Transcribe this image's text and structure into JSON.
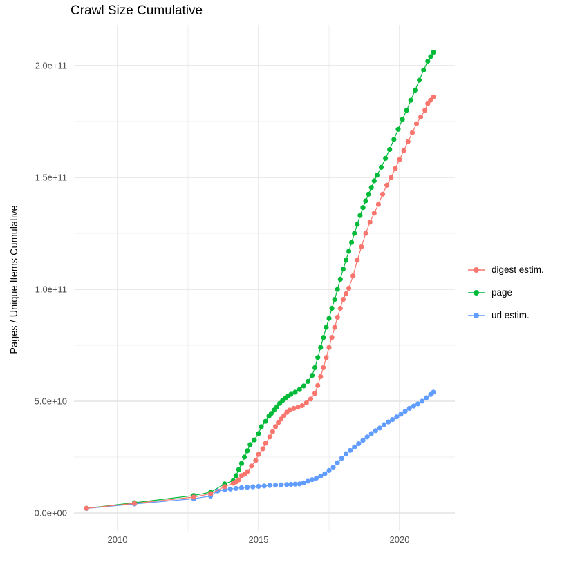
{
  "title": "Crawl Size Cumulative",
  "y_axis_title": "Pages / Unique Items Cumulative",
  "legend": {
    "position": "right",
    "items": [
      {
        "label": "digest estim.",
        "color": "#F8766D"
      },
      {
        "label": "page",
        "color": "#00BA38"
      },
      {
        "label": "url estim.",
        "color": "#619CFF"
      }
    ]
  },
  "axes": {
    "x_tick_labels": [
      "2010",
      "2015",
      "2020"
    ],
    "y_tick_labels": [
      "0.0e+00",
      "5.0e+10",
      "1.0e+11",
      "1.5e+11",
      "2.0e+11"
    ],
    "tick_label_color": "#4D4D4D"
  },
  "chart_data": {
    "type": "line",
    "title": "Crawl Size Cumulative",
    "xlabel": "",
    "ylabel": "Pages / Unique Items Cumulative",
    "xlim": [
      2008.45,
      2021.95
    ],
    "ylim": [
      0,
      215000000000.0
    ],
    "x_ticks": [
      2010,
      2015,
      2020
    ],
    "x_minor_ticks": [
      2012.5,
      2017.5
    ],
    "y_ticks": [
      0,
      50000000000.0,
      100000000000.0,
      150000000000.0,
      200000000000.0
    ],
    "y_minor_ticks": [
      25000000000.0,
      75000000000.0,
      125000000000.0,
      175000000000.0
    ],
    "grid": true,
    "legend_position": "right",
    "marker": "point",
    "series": [
      {
        "name": "digest estim.",
        "color": "#F8766D",
        "points": [
          [
            2008.9,
            2100000000.0
          ],
          [
            2010.6,
            4300000000.0
          ],
          [
            2012.7,
            7100000000.0
          ],
          [
            2013.3,
            8600000000.0
          ],
          [
            2013.8,
            11800000000.0
          ],
          [
            2014.1,
            13300000000.0
          ],
          [
            2014.2,
            13900000000.0
          ],
          [
            2014.3,
            14800000000.0
          ],
          [
            2014.4,
            16700000000.0
          ],
          [
            2014.5,
            17300000000.0
          ],
          [
            2014.6,
            18500000000.0
          ],
          [
            2014.75,
            21000000000.0
          ],
          [
            2014.9,
            23500000000.0
          ],
          [
            2015.0,
            26200000000.0
          ],
          [
            2015.15,
            28700000000.0
          ],
          [
            2015.25,
            31200000000.0
          ],
          [
            2015.4,
            34000000000.0
          ],
          [
            2015.5,
            36400000000.0
          ],
          [
            2015.6,
            38600000000.0
          ],
          [
            2015.7,
            40400000000.0
          ],
          [
            2015.8,
            42000000000.0
          ],
          [
            2015.9,
            43500000000.0
          ],
          [
            2016.0,
            45000000000.0
          ],
          [
            2016.1,
            46000000000.0
          ],
          [
            2016.25,
            46800000000.0
          ],
          [
            2016.4,
            47300000000.0
          ],
          [
            2016.55,
            48000000000.0
          ],
          [
            2016.7,
            49300000000.0
          ],
          [
            2016.85,
            51000000000.0
          ],
          [
            2017.0,
            53500000000.0
          ],
          [
            2017.1,
            57000000000.0
          ],
          [
            2017.2,
            61000000000.0
          ],
          [
            2017.3,
            65000000000.0
          ],
          [
            2017.4,
            69500000000.0
          ],
          [
            2017.5,
            74000000000.0
          ],
          [
            2017.6,
            78500000000.0
          ],
          [
            2017.7,
            83000000000.0
          ],
          [
            2017.8,
            87500000000.0
          ],
          [
            2017.9,
            91500000000.0
          ],
          [
            2018.0,
            95500000000.0
          ],
          [
            2018.1,
            98000000000.0
          ],
          [
            2018.2,
            100500000000.0
          ],
          [
            2018.35,
            106000000000.0
          ],
          [
            2018.5,
            113000000000.0
          ],
          [
            2018.65,
            119000000000.0
          ],
          [
            2018.8,
            125000000000.0
          ],
          [
            2018.95,
            130000000000.0
          ],
          [
            2019.1,
            134000000000.0
          ],
          [
            2019.25,
            138000000000.0
          ],
          [
            2019.4,
            142500000000.0
          ],
          [
            2019.55,
            146500000000.0
          ],
          [
            2019.7,
            150000000000.0
          ],
          [
            2019.85,
            154000000000.0
          ],
          [
            2020.0,
            158000000000.0
          ],
          [
            2020.15,
            162000000000.0
          ],
          [
            2020.3,
            166000000000.0
          ],
          [
            2020.45,
            170000000000.0
          ],
          [
            2020.6,
            174000000000.0
          ],
          [
            2020.75,
            177000000000.0
          ],
          [
            2020.9,
            180000000000.0
          ],
          [
            2021.0,
            183000000000.0
          ],
          [
            2021.1,
            184500000000.0
          ],
          [
            2021.2,
            186000000000.0
          ]
        ]
      },
      {
        "name": "page",
        "color": "#00BA38",
        "points": [
          [
            2008.9,
            2100000000.0
          ],
          [
            2010.6,
            4600000000.0
          ],
          [
            2012.7,
            7800000000.0
          ],
          [
            2013.3,
            9300000000.0
          ],
          [
            2013.8,
            13000000000.0
          ],
          [
            2014.1,
            14500000000.0
          ],
          [
            2014.2,
            16700000000.0
          ],
          [
            2014.3,
            19400000000.0
          ],
          [
            2014.4,
            22200000000.0
          ],
          [
            2014.5,
            25000000000.0
          ],
          [
            2014.6,
            27800000000.0
          ],
          [
            2014.7,
            30600000000.0
          ],
          [
            2014.85,
            32700000000.0
          ],
          [
            2015.0,
            35500000000.0
          ],
          [
            2015.1,
            38600000000.0
          ],
          [
            2015.25,
            41000000000.0
          ],
          [
            2015.37,
            43300000000.0
          ],
          [
            2015.45,
            44500000000.0
          ],
          [
            2015.55,
            46000000000.0
          ],
          [
            2015.65,
            47500000000.0
          ],
          [
            2015.75,
            49000000000.0
          ],
          [
            2015.85,
            50300000000.0
          ],
          [
            2015.95,
            51300000000.0
          ],
          [
            2016.05,
            52300000000.0
          ],
          [
            2016.15,
            53100000000.0
          ],
          [
            2016.3,
            54000000000.0
          ],
          [
            2016.45,
            55200000000.0
          ],
          [
            2016.6,
            56800000000.0
          ],
          [
            2016.75,
            58800000000.0
          ],
          [
            2016.9,
            61500000000.0
          ],
          [
            2017.0,
            65000000000.0
          ],
          [
            2017.1,
            69500000000.0
          ],
          [
            2017.2,
            74000000000.0
          ],
          [
            2017.3,
            78500000000.0
          ],
          [
            2017.4,
            83000000000.0
          ],
          [
            2017.5,
            87000000000.0
          ],
          [
            2017.6,
            91500000000.0
          ],
          [
            2017.7,
            95500000000.0
          ],
          [
            2017.8,
            100000000000.0
          ],
          [
            2017.9,
            104500000000.0
          ],
          [
            2018.0,
            109000000000.0
          ],
          [
            2018.1,
            113000000000.0
          ],
          [
            2018.2,
            117000000000.0
          ],
          [
            2018.3,
            121000000000.0
          ],
          [
            2018.4,
            125000000000.0
          ],
          [
            2018.5,
            129000000000.0
          ],
          [
            2018.6,
            133000000000.0
          ],
          [
            2018.7,
            136500000000.0
          ],
          [
            2018.8,
            139500000000.0
          ],
          [
            2018.9,
            142500000000.0
          ],
          [
            2019.0,
            145500000000.0
          ],
          [
            2019.1,
            148500000000.0
          ],
          [
            2019.2,
            151000000000.0
          ],
          [
            2019.35,
            154500000000.0
          ],
          [
            2019.5,
            158500000000.0
          ],
          [
            2019.65,
            162500000000.0
          ],
          [
            2019.8,
            167000000000.0
          ],
          [
            2019.95,
            171500000000.0
          ],
          [
            2020.1,
            176000000000.0
          ],
          [
            2020.25,
            180000000000.0
          ],
          [
            2020.4,
            184500000000.0
          ],
          [
            2020.55,
            189000000000.0
          ],
          [
            2020.7,
            193500000000.0
          ],
          [
            2020.85,
            198000000000.0
          ],
          [
            2021.0,
            202000000000.0
          ],
          [
            2021.1,
            204000000000.0
          ],
          [
            2021.2,
            206000000000.0
          ]
        ]
      },
      {
        "name": "url estim.",
        "color": "#619CFF",
        "points": [
          [
            2008.9,
            2000000000.0
          ],
          [
            2010.6,
            4000000000.0
          ],
          [
            2012.7,
            6400000000.0
          ],
          [
            2013.3,
            7600000000.0
          ],
          [
            2013.55,
            9800000000.0
          ],
          [
            2013.8,
            10300000000.0
          ],
          [
            2014.0,
            10700000000.0
          ],
          [
            2014.2,
            11000000000.0
          ],
          [
            2014.4,
            11300000000.0
          ],
          [
            2014.6,
            11500000000.0
          ],
          [
            2014.8,
            11700000000.0
          ],
          [
            2015.0,
            11900000000.0
          ],
          [
            2015.2,
            12100000000.0
          ],
          [
            2015.4,
            12300000000.0
          ],
          [
            2015.6,
            12500000000.0
          ],
          [
            2015.8,
            12600000000.0
          ],
          [
            2016.0,
            12700000000.0
          ],
          [
            2016.15,
            12800000000.0
          ],
          [
            2016.3,
            12900000000.0
          ],
          [
            2016.45,
            13000000000.0
          ],
          [
            2016.6,
            13500000000.0
          ],
          [
            2016.75,
            14200000000.0
          ],
          [
            2016.9,
            14900000000.0
          ],
          [
            2017.05,
            15600000000.0
          ],
          [
            2017.2,
            16500000000.0
          ],
          [
            2017.35,
            17500000000.0
          ],
          [
            2017.5,
            19000000000.0
          ],
          [
            2017.65,
            20500000000.0
          ],
          [
            2017.8,
            22500000000.0
          ],
          [
            2017.95,
            24500000000.0
          ],
          [
            2018.1,
            26500000000.0
          ],
          [
            2018.25,
            28000000000.0
          ],
          [
            2018.4,
            29500000000.0
          ],
          [
            2018.55,
            31000000000.0
          ],
          [
            2018.7,
            32500000000.0
          ],
          [
            2018.85,
            34000000000.0
          ],
          [
            2019.0,
            35500000000.0
          ],
          [
            2019.15,
            36800000000.0
          ],
          [
            2019.3,
            38000000000.0
          ],
          [
            2019.45,
            39500000000.0
          ],
          [
            2019.6,
            40700000000.0
          ],
          [
            2019.75,
            41800000000.0
          ],
          [
            2019.9,
            43000000000.0
          ],
          [
            2020.05,
            44200000000.0
          ],
          [
            2020.2,
            45500000000.0
          ],
          [
            2020.35,
            46800000000.0
          ],
          [
            2020.5,
            47800000000.0
          ],
          [
            2020.65,
            48800000000.0
          ],
          [
            2020.8,
            50000000000.0
          ],
          [
            2020.95,
            51500000000.0
          ],
          [
            2021.1,
            53000000000.0
          ],
          [
            2021.2,
            54000000000.0
          ]
        ]
      }
    ]
  },
  "style_colors": {
    "major_grid": "#E3E3E3",
    "minor_grid": "#EFEFEF",
    "background": "#FFFFFF"
  }
}
